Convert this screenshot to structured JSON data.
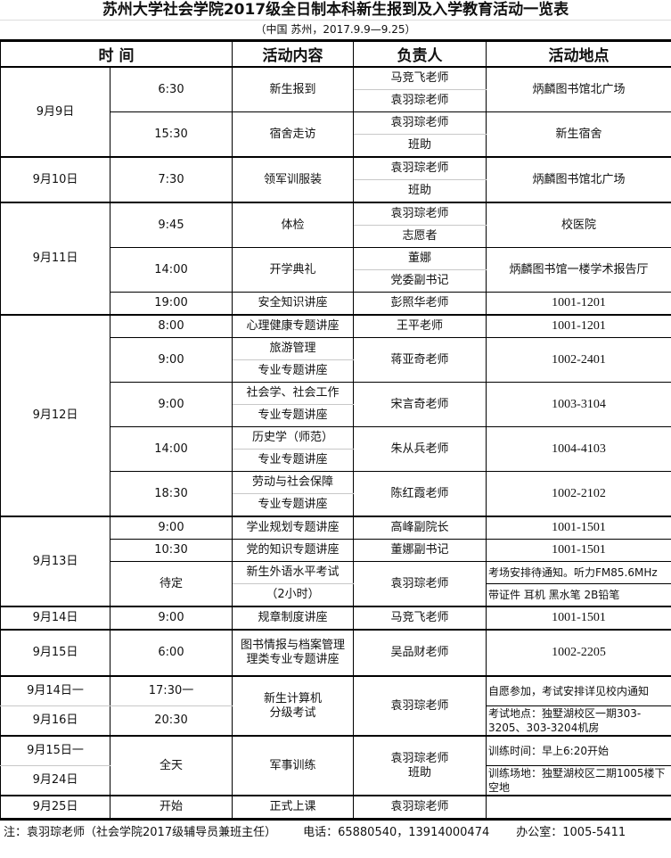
{
  "title": "苏州大学社会学院2017级全日制本科新生报到及入学教育活动一览表",
  "subtitle": "（中国 苏州，2017.9.9—9.25）",
  "headers": {
    "time": "时 间",
    "content": "活动内容",
    "person": "负责人",
    "place": "活动地点"
  },
  "rows": [
    [
      "9月9日",
      "6:30",
      "新生报到",
      "马竞飞老师",
      "炳麟图书馆北广场"
    ],
    [
      "袁羽琮老师"
    ],
    [
      "15:30",
      "宿舍走访",
      "袁羽琮老师",
      "新生宿舍"
    ],
    [
      "班助"
    ],
    [
      "9月10日",
      "7:30",
      "领军训服装",
      "袁羽琮老师",
      "炳麟图书馆北广场"
    ],
    [
      "班助"
    ],
    [
      "9月11日",
      "9:45",
      "体检",
      "袁羽琮老师",
      "校医院"
    ],
    [
      "志愿者"
    ],
    [
      "14:00",
      "开学典礼",
      "董娜",
      "炳麟图书馆一楼学术报告厅"
    ],
    [
      "党委副书记"
    ],
    [
      "19:00",
      "安全知识讲座",
      "彭照华老师",
      "1001-1201"
    ],
    [
      "9月12日",
      "8:00",
      "心理健康专题讲座",
      "王平老师",
      "1001-1201"
    ],
    [
      "9:00",
      "旅游管理",
      "蒋亚奇老师",
      "1002-2401"
    ],
    [
      "专业专题讲座"
    ],
    [
      "9:00",
      "社会学、社会工作",
      "宋言奇老师",
      "1003-3104"
    ],
    [
      "专业专题讲座"
    ],
    [
      "14:00",
      "历史学（师范）",
      "朱从兵老师",
      "1004-4103"
    ],
    [
      "专业专题讲座"
    ],
    [
      "18:30",
      "劳动与社会保障",
      "陈红霞老师",
      "1002-2102"
    ],
    [
      "专业专题讲座"
    ],
    [
      "9月13日",
      "9:00",
      "学业规划专题讲座",
      "高峰副院长",
      "1001-1501"
    ],
    [
      "10:30",
      "党的知识专题讲座",
      "董娜副书记",
      "1001-1501"
    ],
    [
      "待定",
      "新生外语水平考试",
      "袁羽琮老师",
      "考场安排待通知。听力FM85.6MHz"
    ],
    [
      "（2小时）",
      "带证件 耳机 黑水笔 2B铅笔"
    ],
    [
      "9月14日",
      "9:00",
      "规章制度讲座",
      "马竞飞老师",
      "1001-1501"
    ],
    [
      "9月15日",
      "6:00",
      "图书情报与档案管理\n理类专业专题讲座",
      "吴品财老师",
      "1002-2205"
    ],
    [
      "9月14日一",
      "17:30一",
      "新生计算机\n分级考试",
      "袁羽琮老师",
      "自愿参加，考试安排详见校内通知"
    ],
    [
      "9月16日",
      "20:30",
      "考试地点：独墅湖校区一期303-3205、303-3204机房"
    ],
    [
      "9月15日一",
      "全天",
      "军事训练",
      "袁羽琮老师\n班助",
      "训练时间：早上6:20开始"
    ],
    [
      "9月24日",
      "训练场地：独墅湖校区二期1005楼下空地"
    ],
    [
      "9月25日",
      "开始",
      "正式上课",
      "袁羽琮老师",
      ""
    ]
  ],
  "footer": {
    "note": "注：袁羽琮老师（社会学院2017级辅导员兼班主任）",
    "phone": "电话：65880540，13914000474",
    "office": "办公室：1005-5411"
  }
}
